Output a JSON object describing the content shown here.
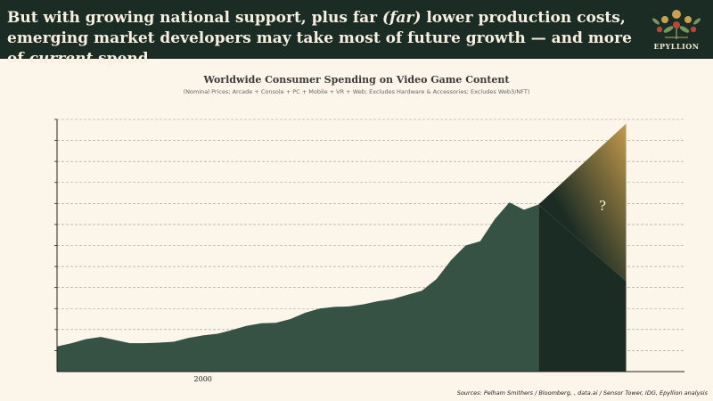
{
  "headline": {
    "part1": "But with growing national support, plus far ",
    "em1": "(far)",
    "part2": " lower production costs, emerging market developers may take most of future growth — and more of ",
    "em2": "current",
    "part3": " spend"
  },
  "brand": "EPYLLION",
  "colors": {
    "header_bg": "#1b2c24",
    "area": "#355245",
    "forecast_dark": "#1b2c24",
    "forecast_gold": "#c29a4c",
    "background": "#fbf5ea"
  },
  "chart_data": {
    "type": "area",
    "title": "Worldwide Consumer Spending on Video Game Content",
    "subtitle": "(Nominal Prices; Arcade + Console + PC + Mobile + VR + Web; Excludes Hardware & Accessories; Excludes Web3/NFT)",
    "x_tick_labels": [
      {
        "x": 2000,
        "label": "2000"
      }
    ],
    "xlim": [
      1990,
      2033
    ],
    "ylim": [
      0,
      12
    ],
    "y_gridlines": 12,
    "question_label": "?",
    "series": [
      {
        "name": "Consumer spending",
        "x": [
          1990,
          1991,
          1992,
          1993,
          1994,
          1995,
          1996,
          1997,
          1998,
          1999,
          2000,
          2001,
          2002,
          2003,
          2004,
          2005,
          2006,
          2007,
          2008,
          2009,
          2010,
          2011,
          2012,
          2013,
          2014,
          2015,
          2016,
          2017,
          2018,
          2019,
          2020,
          2021,
          2022,
          2023
        ],
        "values": [
          1.2,
          1.35,
          1.55,
          1.65,
          1.5,
          1.35,
          1.35,
          1.38,
          1.42,
          1.6,
          1.72,
          1.8,
          1.98,
          2.18,
          2.3,
          2.32,
          2.5,
          2.8,
          3.0,
          3.08,
          3.1,
          3.2,
          3.35,
          3.45,
          3.65,
          3.85,
          4.4,
          5.3,
          6.0,
          6.2,
          7.25,
          8.05,
          7.7,
          7.95
        ]
      }
    ],
    "forecast": {
      "start_x": 2023,
      "end_x": 2029,
      "high_end": 11.8,
      "low_end": 4.3
    },
    "sources": "Sources: Pelham Smithers / Bloomberg,           , data.ai / Sensor Tower, IDG, Epyllion analysis"
  }
}
